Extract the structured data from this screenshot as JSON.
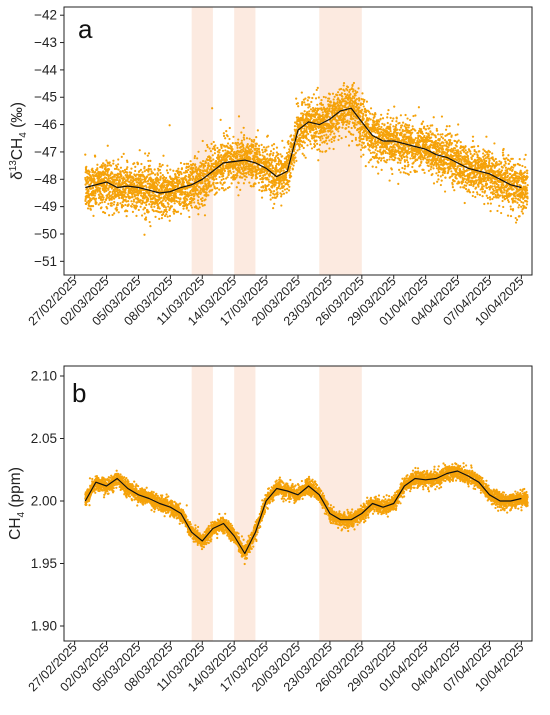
{
  "colors": {
    "points": "#f5a20a",
    "smooth_line": "#111111",
    "shade": "#fbe3d6",
    "axis": "#222222",
    "text": "#222222"
  },
  "chart_data": [
    {
      "type": "scatter",
      "panel_label": "a",
      "ylabel": "δ¹³CH₄ (‰)",
      "ylabel_parts": [
        "δ",
        "13",
        "CH",
        "4",
        " (‰)"
      ],
      "ylim": [
        -51.5,
        -41.7
      ],
      "yticks": [
        -51,
        -50,
        -49,
        -48,
        -47,
        -46,
        -45,
        -44,
        -43,
        -42
      ],
      "ytick_labels": [
        "−51",
        "−50",
        "−49",
        "−48",
        "−47",
        "−46",
        "−45",
        "−44",
        "−43",
        "−42"
      ],
      "x_axis": {
        "start": "2025-02-26",
        "end": "2025-04-11",
        "ticks": [
          "27/02/2025",
          "02/03/2025",
          "05/03/2025",
          "08/03/2025",
          "11/03/2025",
          "14/03/2025",
          "17/03/2025",
          "20/03/2025",
          "23/03/2025",
          "26/03/2025",
          "29/03/2025",
          "01/04/2025",
          "04/04/2025",
          "07/04/2025",
          "10/04/2025"
        ]
      },
      "shaded_periods": [
        [
          "10/03/2025",
          "12/03/2025"
        ],
        [
          "14/03/2025",
          "16/03/2025"
        ],
        [
          "22/03/2025",
          "26/03/2025"
        ]
      ],
      "smoothed_series": {
        "x": [
          "28/02/2025",
          "01/03/2025",
          "02/03/2025",
          "03/03/2025",
          "04/03/2025",
          "05/03/2025",
          "06/03/2025",
          "07/03/2025",
          "08/03/2025",
          "09/03/2025",
          "10/03/2025",
          "11/03/2025",
          "12/03/2025",
          "13/03/2025",
          "14/03/2025",
          "15/03/2025",
          "16/03/2025",
          "17/03/2025",
          "18/03/2025",
          "19/03/2025",
          "20/03/2025",
          "21/03/2025",
          "22/03/2025",
          "23/03/2025",
          "24/03/2025",
          "25/03/2025",
          "26/03/2025",
          "27/03/2025",
          "28/03/2025",
          "29/03/2025",
          "30/03/2025",
          "31/03/2025",
          "01/04/2025",
          "02/04/2025",
          "03/04/2025",
          "04/04/2025",
          "05/04/2025",
          "06/04/2025",
          "07/04/2025",
          "08/04/2025",
          "09/04/2025",
          "10/04/2025"
        ],
        "y": [
          -48.3,
          -48.2,
          -48.1,
          -48.3,
          -48.25,
          -48.3,
          -48.4,
          -48.5,
          -48.45,
          -48.3,
          -48.2,
          -48.0,
          -47.7,
          -47.4,
          -47.35,
          -47.3,
          -47.4,
          -47.6,
          -47.9,
          -47.7,
          -46.2,
          -45.9,
          -46.0,
          -45.8,
          -45.5,
          -45.4,
          -45.9,
          -46.4,
          -46.6,
          -46.6,
          -46.7,
          -46.8,
          -46.9,
          -47.1,
          -47.2,
          -47.4,
          -47.6,
          -47.7,
          -47.8,
          -48.0,
          -48.2,
          -48.3
        ]
      },
      "raw_points": {
        "description_note_free": true,
        "cadence_per_day": 150,
        "spread": [
          1.0,
          1.6
        ],
        "start": "2025-02-28",
        "end": "2025-04-10"
      }
    },
    {
      "type": "scatter",
      "panel_label": "b",
      "ylabel": "CH₄ (ppm)",
      "ylabel_parts": [
        "CH",
        "4",
        " (ppm)"
      ],
      "ylim": [
        1.888,
        2.108
      ],
      "yticks": [
        1.9,
        1.95,
        2.0,
        2.05,
        2.1
      ],
      "ytick_labels": [
        "1.90",
        "1.95",
        "2.00",
        "2.05",
        "2.10"
      ],
      "x_axis": {
        "start": "2025-02-26",
        "end": "2025-04-11",
        "ticks": [
          "27/02/2025",
          "02/03/2025",
          "05/03/2025",
          "08/03/2025",
          "11/03/2025",
          "14/03/2025",
          "17/03/2025",
          "20/03/2025",
          "23/03/2025",
          "26/03/2025",
          "29/03/2025",
          "01/04/2025",
          "04/04/2025",
          "07/04/2025",
          "10/04/2025"
        ]
      },
      "shaded_periods": [
        [
          "10/03/2025",
          "12/03/2025"
        ],
        [
          "14/03/2025",
          "16/03/2025"
        ],
        [
          "22/03/2025",
          "26/03/2025"
        ]
      ],
      "smoothed_series": {
        "x": [
          "28/02/2025",
          "01/03/2025",
          "02/03/2025",
          "03/03/2025",
          "04/03/2025",
          "05/03/2025",
          "06/03/2025",
          "07/03/2025",
          "08/03/2025",
          "09/03/2025",
          "10/03/2025",
          "11/03/2025",
          "12/03/2025",
          "13/03/2025",
          "14/03/2025",
          "15/03/2025",
          "16/03/2025",
          "17/03/2025",
          "18/03/2025",
          "19/03/2025",
          "20/03/2025",
          "21/03/2025",
          "22/03/2025",
          "23/03/2025",
          "24/03/2025",
          "25/03/2025",
          "26/03/2025",
          "27/03/2025",
          "28/03/2025",
          "29/03/2025",
          "30/03/2025",
          "31/03/2025",
          "01/04/2025",
          "02/04/2025",
          "03/04/2025",
          "04/04/2025",
          "05/04/2025",
          "06/04/2025",
          "07/04/2025",
          "08/04/2025",
          "09/04/2025",
          "10/04/2025"
        ],
        "y": [
          2.0,
          2.015,
          2.012,
          2.018,
          2.01,
          2.005,
          2.002,
          1.998,
          1.995,
          1.99,
          1.975,
          1.968,
          1.978,
          1.982,
          1.972,
          1.958,
          1.975,
          2.0,
          2.01,
          2.008,
          2.005,
          2.012,
          2.005,
          1.99,
          1.985,
          1.985,
          1.99,
          1.998,
          1.995,
          1.998,
          2.012,
          2.018,
          2.017,
          2.018,
          2.022,
          2.024,
          2.02,
          2.015,
          2.005,
          2.0,
          2.0,
          2.002
        ]
      },
      "raw_points": {
        "cadence_per_day": 150,
        "spread": [
          0.006,
          0.012
        ],
        "start": "2025-02-28",
        "end": "2025-04-10"
      }
    }
  ]
}
